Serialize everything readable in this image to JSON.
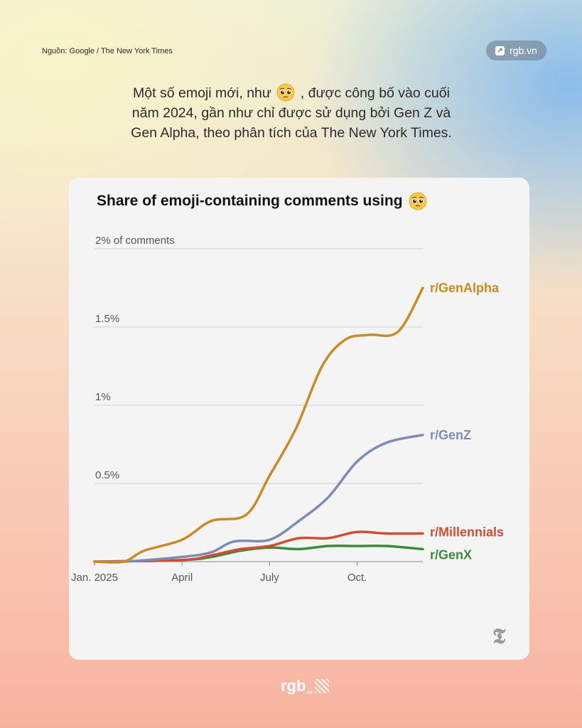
{
  "source": "Nguồn: Google / The New York Times",
  "badge": {
    "label": "rgb.vn",
    "icon": "arrow-link-icon"
  },
  "headline": {
    "line1_before": "Một số emoji mới, như",
    "line1_after": ", được công bố vào cuối",
    "line2": "năm 2024, gần như chỉ được sử dụng bởi Gen Z và",
    "line3": "Gen Alpha, theo phân tích của The New York Times.",
    "emoji": "pleading-face-emoji-icon"
  },
  "chart_data": {
    "type": "line",
    "title": "Share of emoji-containing comments using",
    "title_emoji": "pleading-face-emoji-icon",
    "x_ticks": [
      {
        "label": "Jan. 2025",
        "month": 0
      },
      {
        "label": "April",
        "month": 3
      },
      {
        "label": "July",
        "month": 6
      },
      {
        "label": "Oct.",
        "month": 9
      }
    ],
    "y_ticks": [
      {
        "label": "2% of comments",
        "value": 2
      },
      {
        "label": "1.5%",
        "value": 1.5
      },
      {
        "label": "1%",
        "value": 1
      },
      {
        "label": "0.5%",
        "value": 0.5
      }
    ],
    "xlim": [
      0,
      11.25
    ],
    "ylim": [
      0,
      2
    ],
    "grid": true,
    "series": [
      {
        "name": "r/GenAlpha",
        "color": "#cc8a24",
        "x": [
          0,
          1,
          1.7,
          3,
          4,
          5.2,
          6,
          6.9,
          7.8,
          8.6,
          9.4,
          10.4,
          11.25
        ],
        "y": [
          0,
          0,
          0.07,
          0.14,
          0.26,
          0.3,
          0.55,
          0.85,
          1.25,
          1.42,
          1.45,
          1.47,
          1.75
        ]
      },
      {
        "name": "r/GenZ",
        "color": "#7d8cb0",
        "x": [
          0,
          1,
          3,
          4,
          4.8,
          6,
          7,
          8,
          9,
          10,
          11.25
        ],
        "y": [
          0,
          0,
          0.03,
          0.06,
          0.13,
          0.14,
          0.26,
          0.41,
          0.64,
          0.76,
          0.81
        ]
      },
      {
        "name": "r/Millennials",
        "color": "#d24e33",
        "x": [
          0,
          3,
          4,
          5,
          6,
          7,
          8,
          9,
          10,
          11.25
        ],
        "y": [
          0,
          0.01,
          0.04,
          0.08,
          0.1,
          0.15,
          0.15,
          0.19,
          0.18,
          0.18
        ]
      },
      {
        "name": "r/GenX",
        "color": "#3d8a3b",
        "x": [
          0,
          3,
          4,
          5,
          6,
          7,
          8,
          9,
          10,
          11.25
        ],
        "y": [
          0,
          0.01,
          0.03,
          0.07,
          0.09,
          0.08,
          0.1,
          0.1,
          0.1,
          0.08
        ]
      }
    ]
  },
  "footer": {
    "logo": "rgb",
    "logo_suffix": ".vn"
  }
}
